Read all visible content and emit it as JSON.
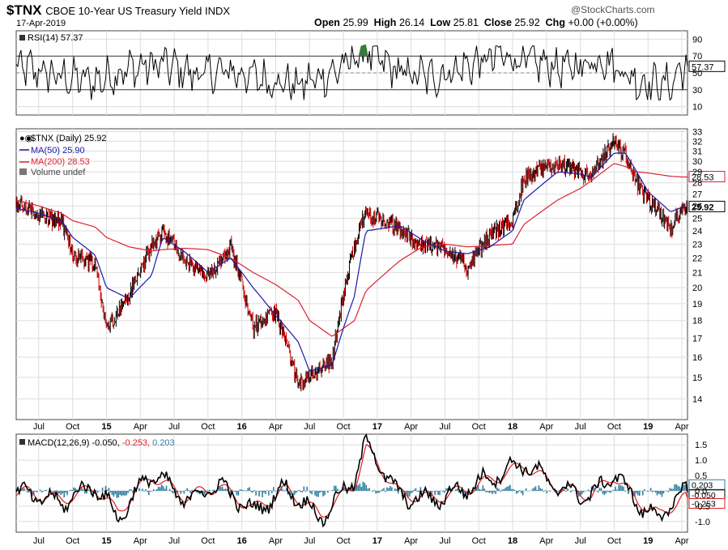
{
  "header": {
    "symbol": "$TNX",
    "name": "CBOE 10-Year US Treasury Yield INDX",
    "date": "17-Apr-2019",
    "open_label": "Open",
    "open": "25.99",
    "high_label": "High",
    "high": "26.14",
    "low_label": "Low",
    "low": "25.81",
    "close_label": "Close",
    "close": "25.92",
    "chg_label": "Chg",
    "chg": "+0.00 (+0.00%)",
    "copyright": "@StockCharts.com"
  },
  "rsi_panel": {
    "legend": "RSI(14) 57.37",
    "last_value": "57.37",
    "ticks": [
      "90",
      "70",
      "50",
      "30",
      "10"
    ]
  },
  "price_panel": {
    "legend": [
      "$TNX (Daily) 25.92",
      "MA(50) 25.90",
      "MA(200) 28.53",
      "Volume undef"
    ],
    "ticks": [
      "33",
      "32",
      "31",
      "30",
      "29",
      "28",
      "27",
      "26",
      "25",
      "24",
      "23",
      "22",
      "21",
      "20",
      "19",
      "18",
      "17",
      "16",
      "15",
      "14"
    ],
    "last_close": "25.92",
    "ma200_label": "28.53"
  },
  "macd_panel": {
    "legend_prefix": "MACD(12,26,9)",
    "macd": "-0.050",
    "signal": "-0.253",
    "hist": "0.203",
    "ticks": [
      "1.5",
      "1.0",
      "0.5",
      "0.0",
      "-0.5",
      "-1.0"
    ]
  },
  "x_labels": [
    "Jul",
    "Oct",
    "15",
    "Apr",
    "Jul",
    "Oct",
    "16",
    "Apr",
    "Jul",
    "Oct",
    "17",
    "Apr",
    "Jul",
    "Oct",
    "18",
    "Apr",
    "Jul",
    "Oct",
    "19",
    "Apr"
  ],
  "colors": {
    "price_up": "#000000",
    "price_down": "#cc0000",
    "ma50": "#1a1aa6",
    "ma200": "#dd2233",
    "rsi": "#000000",
    "macd": "#000000",
    "signal": "#dd2222",
    "hist": "#2f7f9f",
    "grid": "#dddddd"
  },
  "chart_data": [
    {
      "type": "line",
      "title": "RSI(14)",
      "ylim": [
        0,
        100
      ],
      "x": [
        "2014-06",
        "2014-09",
        "2014-12",
        "2015-03",
        "2015-06",
        "2015-09",
        "2015-12",
        "2016-03",
        "2016-06",
        "2016-09",
        "2016-12",
        "2017-03",
        "2017-06",
        "2017-09",
        "2017-12",
        "2018-03",
        "2018-06",
        "2018-09",
        "2018-12",
        "2019-03",
        "2019-04"
      ],
      "series": [
        {
          "name": "RSI(14)",
          "values": [
            55,
            45,
            40,
            55,
            60,
            48,
            52,
            42,
            35,
            50,
            75,
            50,
            45,
            58,
            70,
            62,
            55,
            68,
            40,
            35,
            57.37
          ]
        }
      ],
      "reference_lines": [
        70,
        30
      ]
    },
    {
      "type": "line",
      "title": "$TNX (Daily)",
      "ylim": [
        13.3,
        33.2
      ],
      "x": [
        "2014-05",
        "2014-07",
        "2014-09",
        "2014-10",
        "2014-12",
        "2015-01",
        "2015-03",
        "2015-05",
        "2015-06",
        "2015-08",
        "2015-10",
        "2015-12",
        "2016-02",
        "2016-04",
        "2016-06",
        "2016-07",
        "2016-09",
        "2016-11",
        "2016-12",
        "2017-03",
        "2017-05",
        "2017-07",
        "2017-09",
        "2017-11",
        "2018-01",
        "2018-02",
        "2018-05",
        "2018-07",
        "2018-08",
        "2018-10",
        "2018-11",
        "2018-12",
        "2019-01",
        "2019-03",
        "2019-04"
      ],
      "series": [
        {
          "name": "$TNX",
          "values": [
            26.1,
            25.3,
            24.7,
            22.3,
            21.6,
            17.5,
            19.5,
            22.8,
            24.0,
            21.8,
            20.6,
            22.9,
            17.6,
            18.5,
            14.6,
            15.1,
            15.9,
            23.0,
            25.5,
            24.1,
            22.9,
            22.8,
            21.3,
            23.7,
            24.8,
            28.4,
            29.8,
            28.9,
            28.6,
            31.9,
            30.6,
            27.9,
            26.5,
            24.2,
            25.92
          ]
        },
        {
          "name": "MA(50)",
          "values": [
            25.8,
            25.4,
            24.8,
            23.5,
            22.2,
            20.0,
            19.3,
            20.8,
            23.5,
            22.4,
            21.0,
            22.0,
            20.0,
            18.3,
            16.8,
            15.3,
            15.6,
            19.5,
            24.0,
            24.4,
            23.3,
            22.5,
            22.3,
            22.8,
            24.0,
            26.5,
            29.0,
            28.8,
            28.5,
            30.8,
            30.8,
            29.0,
            27.2,
            25.5,
            25.9
          ]
        },
        {
          "name": "MA(200)",
          "values": [
            26.5,
            26.0,
            25.4,
            24.8,
            24.3,
            23.5,
            22.8,
            22.5,
            22.6,
            22.7,
            22.6,
            22.0,
            21.0,
            20.2,
            19.2,
            18.0,
            17.1,
            18.0,
            19.8,
            21.8,
            22.8,
            23.0,
            22.8,
            22.9,
            23.0,
            24.5,
            26.5,
            27.5,
            28.2,
            29.8,
            29.5,
            29.0,
            28.9,
            28.6,
            28.53
          ]
        }
      ]
    },
    {
      "type": "line",
      "title": "MACD(12,26,9)",
      "ylim": [
        -1.2,
        1.8
      ],
      "x": [
        "2014-06",
        "2014-09",
        "2014-12",
        "2015-02",
        "2015-05",
        "2015-08",
        "2015-11",
        "2016-02",
        "2016-05",
        "2016-08",
        "2016-11",
        "2016-12",
        "2017-03",
        "2017-06",
        "2017-09",
        "2017-12",
        "2018-02",
        "2018-05",
        "2018-08",
        "2018-10",
        "2018-12",
        "2019-02",
        "2019-04"
      ],
      "series": [
        {
          "name": "MACD",
          "values": [
            -0.1,
            -0.4,
            0.2,
            -0.9,
            0.6,
            -0.3,
            0.2,
            -0.7,
            0.1,
            -0.9,
            0.4,
            1.6,
            -0.2,
            -0.3,
            0.1,
            0.6,
            0.9,
            0.1,
            -0.2,
            0.6,
            -0.4,
            -0.9,
            -0.05
          ]
        },
        {
          "name": "Signal",
          "values": [
            -0.05,
            -0.3,
            0.1,
            -0.7,
            0.5,
            -0.2,
            0.15,
            -0.6,
            0.05,
            -0.8,
            0.2,
            1.4,
            -0.1,
            -0.25,
            0.05,
            0.5,
            0.85,
            0.1,
            -0.15,
            0.5,
            -0.3,
            -0.8,
            -0.253
          ]
        },
        {
          "name": "Histogram",
          "values": [
            -0.05,
            -0.1,
            0.1,
            -0.2,
            0.1,
            -0.1,
            0.05,
            -0.1,
            0.05,
            -0.1,
            0.2,
            0.2,
            -0.1,
            -0.05,
            0.05,
            0.1,
            0.05,
            0.0,
            -0.05,
            0.1,
            -0.1,
            -0.1,
            0.203
          ]
        }
      ]
    }
  ]
}
